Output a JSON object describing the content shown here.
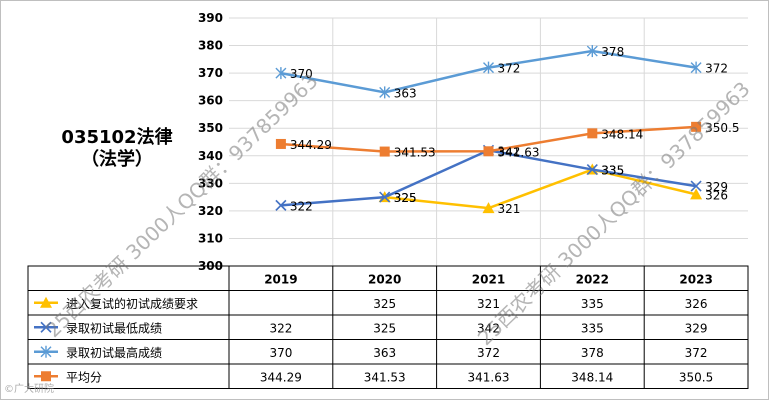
{
  "chart_data": {
    "type": "line",
    "title": "035102法律",
    "subtitle": "（法学）",
    "categories": [
      "2019",
      "2020",
      "2021",
      "2022",
      "2023"
    ],
    "ylim": [
      300,
      390
    ],
    "yticks": [
      "300",
      "310",
      "320",
      "330",
      "340",
      "350",
      "360",
      "370",
      "380",
      "390"
    ],
    "grid": true,
    "legend": "table-below",
    "series": [
      {
        "name": "进入复试的初试成绩要求",
        "color": "#FFC000",
        "marker": "triangle",
        "values": [
          null,
          325,
          321,
          335,
          326
        ],
        "labels": [
          "",
          "325",
          "321",
          "335",
          "326"
        ]
      },
      {
        "name": "录取初试最低成绩",
        "color": "#4472C4",
        "marker": "x",
        "values": [
          322,
          325,
          342,
          335,
          329
        ],
        "labels": [
          "322",
          "325",
          "342",
          "335",
          "329"
        ]
      },
      {
        "name": "录取初试最高成绩",
        "color": "#5B9BD5",
        "marker": "star",
        "values": [
          370,
          363,
          372,
          378,
          372
        ],
        "labels": [
          "370",
          "363",
          "372",
          "378",
          "372"
        ]
      },
      {
        "name": "平均分",
        "color": "#ED7D31",
        "marker": "square",
        "values": [
          344.29,
          341.53,
          341.63,
          348.14,
          350.5
        ],
        "labels": [
          "344.29",
          "341.53",
          "341.63",
          "348.14",
          "350.5"
        ]
      }
    ]
  },
  "watermarks": [
    "25西农考研 3000人QQ群：937859963",
    "25西农考研 3000人QQ群：937859963"
  ],
  "corner_watermark": "©广大研院"
}
